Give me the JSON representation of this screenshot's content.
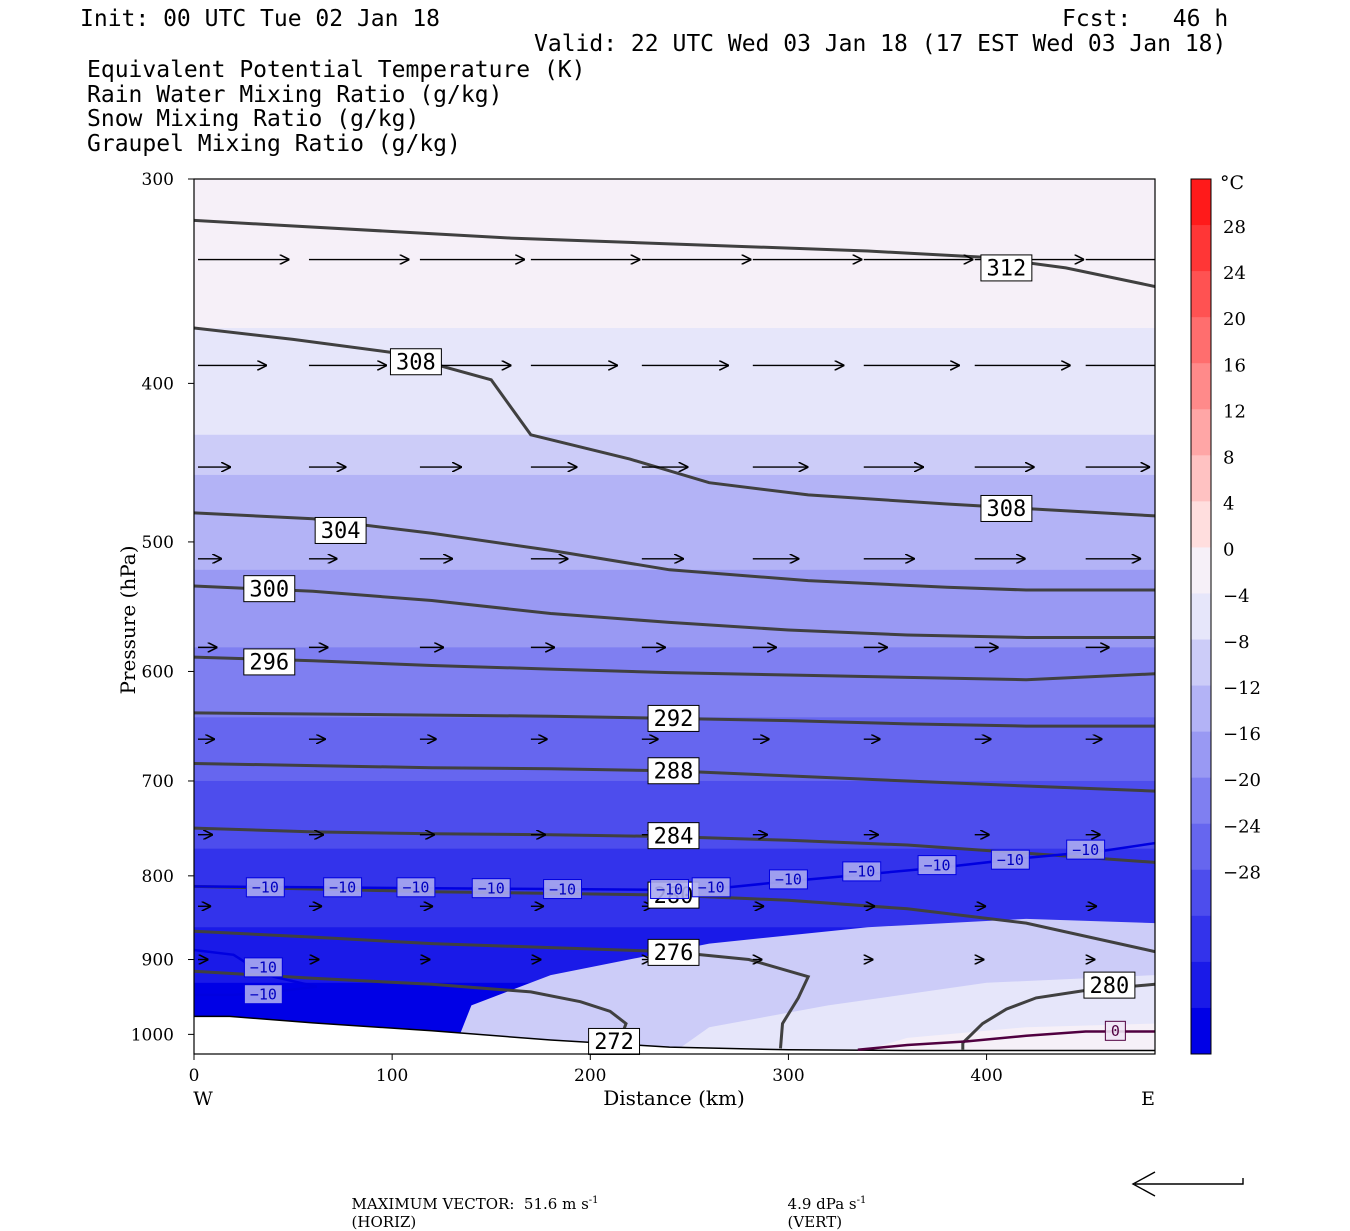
{
  "header": {
    "init": "Init: 00 UTC Tue 02 Jan 18",
    "fcst": "Fcst:   46 h",
    "valid": "Valid: 22 UTC Wed 03 Jan 18 (17 EST Wed 03 Jan 18)"
  },
  "legend": [
    {
      "label": "Equivalent Potential Temperature (K)",
      "color": "#404040"
    },
    {
      "label": "Rain Water Mixing Ratio (g/kg)",
      "color": "#007a00"
    },
    {
      "label": "Snow Mixing Ratio (g/kg)",
      "color": "#f08040"
    },
    {
      "label": "Graupel Mixing Ratio (g/kg)",
      "color": "#f080f0"
    }
  ],
  "chart_data": {
    "type": "cross-section",
    "xlabel": "Distance (km)",
    "ylabel": "Pressure (hPa)",
    "xlim": [
      0,
      485
    ],
    "ylim": [
      1028,
      300
    ],
    "y_log": true,
    "x_ticks": [
      "0",
      "100",
      "200",
      "300",
      "400"
    ],
    "x_tick_values": [
      0,
      100,
      200,
      300,
      400
    ],
    "y_ticks": [
      "300",
      "400",
      "500",
      "600",
      "700",
      "800",
      "900",
      "1000"
    ],
    "y_tick_values": [
      300,
      400,
      500,
      600,
      700,
      800,
      900,
      1000
    ],
    "west_label": "W",
    "east_label": "E",
    "temperature_shading": {
      "unit_label": "°C",
      "levels": [
        "28",
        "24",
        "20",
        "16",
        "12",
        "8",
        "4",
        "0",
        "−4",
        "−8",
        "−12",
        "−16",
        "−20",
        "−24",
        "−28"
      ],
      "level_values": [
        28,
        24,
        20,
        16,
        12,
        8,
        4,
        0,
        -4,
        -8,
        -12,
        -16,
        -20,
        -24,
        -28
      ],
      "colors": [
        "#ff1a1a",
        "#ff3636",
        "#ff5252",
        "#ff6e6e",
        "#ff8a8a",
        "#ffa6a6",
        "#ffc2c2",
        "#ffdede",
        "#f6f0f8",
        "#e6e6fa",
        "#ccccf8",
        "#b3b3f6",
        "#9999f3",
        "#7f7ff1",
        "#6666ef",
        "#4d4ded",
        "#3333eb",
        "#1a1ae8",
        "#0000e6"
      ]
    },
    "theta_e_contours": [
      {
        "level": "312",
        "label_at": [
          410,
          340
        ],
        "points": [
          [
            0,
            318
          ],
          [
            40,
            320
          ],
          [
            100,
            323
          ],
          [
            160,
            326
          ],
          [
            220,
            328
          ],
          [
            280,
            330
          ],
          [
            340,
            332
          ],
          [
            400,
            335
          ],
          [
            440,
            340
          ],
          [
            485,
            349
          ]
        ]
      },
      {
        "level": "308",
        "label_at": [
          112,
          388
        ],
        "points": [
          [
            0,
            370
          ],
          [
            50,
            376
          ],
          [
            100,
            383
          ],
          [
            150,
            398
          ],
          [
            170,
            430
          ],
          [
            220,
            445
          ],
          [
            260,
            460
          ],
          [
            310,
            468
          ],
          [
            380,
            474
          ],
          [
            485,
            482
          ]
        ]
      },
      {
        "level": "308",
        "label_at": [
          410,
          477
        ],
        "points": []
      },
      {
        "level": "304",
        "label_at": [
          74,
          492
        ],
        "points": [
          [
            0,
            480
          ],
          [
            60,
            484
          ],
          [
            120,
            494
          ],
          [
            180,
            506
          ],
          [
            240,
            520
          ],
          [
            310,
            528
          ],
          [
            380,
            533
          ],
          [
            420,
            535
          ],
          [
            485,
            535
          ]
        ]
      },
      {
        "level": "300",
        "label_at": [
          38,
          534
        ],
        "points": [
          [
            0,
            532
          ],
          [
            60,
            536
          ],
          [
            120,
            543
          ],
          [
            180,
            553
          ],
          [
            240,
            560
          ],
          [
            300,
            566
          ],
          [
            360,
            570
          ],
          [
            420,
            572
          ],
          [
            485,
            572
          ]
        ]
      },
      {
        "level": "296",
        "label_at": [
          38,
          592
        ],
        "points": [
          [
            0,
            588
          ],
          [
            60,
            591
          ],
          [
            120,
            595
          ],
          [
            180,
            598
          ],
          [
            240,
            601
          ],
          [
            300,
            603
          ],
          [
            360,
            605
          ],
          [
            420,
            607
          ],
          [
            485,
            602
          ]
        ]
      },
      {
        "level": "292",
        "label_at": [
          242,
          641
        ],
        "points": [
          [
            0,
            636
          ],
          [
            60,
            637
          ],
          [
            120,
            638
          ],
          [
            180,
            639
          ],
          [
            240,
            641
          ],
          [
            300,
            643
          ],
          [
            360,
            646
          ],
          [
            420,
            648
          ],
          [
            485,
            648
          ]
        ]
      },
      {
        "level": "288",
        "label_at": [
          242,
          690
        ],
        "points": [
          [
            0,
            683
          ],
          [
            60,
            685
          ],
          [
            120,
            687
          ],
          [
            180,
            688
          ],
          [
            240,
            690
          ],
          [
            300,
            695
          ],
          [
            360,
            700
          ],
          [
            420,
            705
          ],
          [
            485,
            710
          ]
        ]
      },
      {
        "level": "284",
        "label_at": [
          242,
          756
        ],
        "points": [
          [
            0,
            748
          ],
          [
            60,
            752
          ],
          [
            120,
            754
          ],
          [
            180,
            755
          ],
          [
            240,
            757
          ],
          [
            300,
            761
          ],
          [
            360,
            766
          ],
          [
            420,
            775
          ],
          [
            485,
            785
          ]
        ]
      },
      {
        "level": "280",
        "label_at": [
          242,
          822
        ],
        "points": [
          [
            0,
            812
          ],
          [
            60,
            815
          ],
          [
            120,
            818
          ],
          [
            180,
            820
          ],
          [
            240,
            822
          ],
          [
            300,
            828
          ],
          [
            360,
            838
          ],
          [
            420,
            855
          ],
          [
            485,
            890
          ]
        ]
      },
      {
        "level": "276",
        "label_at": [
          242,
          891
        ],
        "points": [
          [
            0,
            865
          ],
          [
            60,
            872
          ],
          [
            120,
            880
          ],
          [
            180,
            885
          ],
          [
            240,
            890
          ],
          [
            280,
            900
          ],
          [
            310,
            922
          ],
          [
            305,
            950
          ],
          [
            297,
            985
          ],
          [
            296,
            1020
          ]
        ]
      },
      {
        "level": "272",
        "label_at": [
          212,
          1010
        ],
        "points": [
          [
            0,
            915
          ],
          [
            60,
            924
          ],
          [
            120,
            932
          ],
          [
            170,
            942
          ],
          [
            195,
            955
          ],
          [
            210,
            968
          ],
          [
            218,
            985
          ],
          [
            215,
            1008
          ],
          [
            215,
            1020
          ]
        ]
      },
      {
        "level": "280",
        "label_at": [
          462,
          933
        ],
        "points": [
          [
            485,
            932
          ],
          [
            450,
            940
          ],
          [
            425,
            950
          ],
          [
            410,
            965
          ],
          [
            398,
            985
          ],
          [
            388,
            1012
          ],
          [
            388,
            1022
          ]
        ]
      }
    ],
    "temperature_minus10_contour": {
      "label": "−10",
      "color": "#0000e0",
      "points": [
        [
          0,
          812
        ],
        [
          60,
          813
        ],
        [
          120,
          814
        ],
        [
          180,
          815
        ],
        [
          240,
          816
        ],
        [
          270,
          813
        ],
        [
          300,
          806
        ],
        [
          340,
          798
        ],
        [
          380,
          790
        ],
        [
          420,
          780
        ],
        [
          460,
          772
        ],
        [
          485,
          764
        ]
      ]
    },
    "minus10_labels": [
      [
        36,
        813
      ],
      [
        75,
        813
      ],
      [
        112,
        813
      ],
      [
        150,
        814
      ],
      [
        186,
        815
      ],
      [
        240,
        815
      ],
      [
        261,
        813
      ],
      [
        300,
        804
      ],
      [
        337,
        795
      ],
      [
        375,
        788
      ],
      [
        412,
        782
      ],
      [
        450,
        771
      ],
      [
        35,
        910
      ],
      [
        35,
        945
      ]
    ],
    "small_minus10_contour": {
      "label": "−10",
      "color": "#0000e0",
      "points": [
        [
          0,
          888
        ],
        [
          20,
          894
        ],
        [
          30,
          910
        ],
        [
          40,
          922
        ],
        [
          62,
          935
        ],
        [
          40,
          942
        ],
        [
          20,
          946
        ],
        [
          0,
          946
        ]
      ]
    },
    "zero_contour": {
      "label": "0",
      "color": "#500040",
      "label_at": [
        465,
        995
      ],
      "points": [
        [
          335,
          1022
        ],
        [
          360,
          1015
        ],
        [
          390,
          1010
        ],
        [
          420,
          1002
        ],
        [
          450,
          996
        ],
        [
          485,
          996
        ]
      ]
    },
    "terrain": {
      "color": "#ffffff",
      "points": [
        [
          0,
          975
        ],
        [
          18,
          975
        ],
        [
          60,
          984
        ],
        [
          120,
          995
        ],
        [
          180,
          1008
        ],
        [
          240,
          1018
        ],
        [
          300,
          1022
        ],
        [
          360,
          1023
        ],
        [
          420,
          1023
        ],
        [
          485,
          1023
        ]
      ]
    },
    "max_vector_text": "MAXIMUM VECTOR:  51.6 m s",
    "max_vector_horiz": "(HORIZ)",
    "max_vector_vert": "4.9 dPa s",
    "max_vector_vert_label": "(VERT)",
    "superscript": "-1"
  }
}
